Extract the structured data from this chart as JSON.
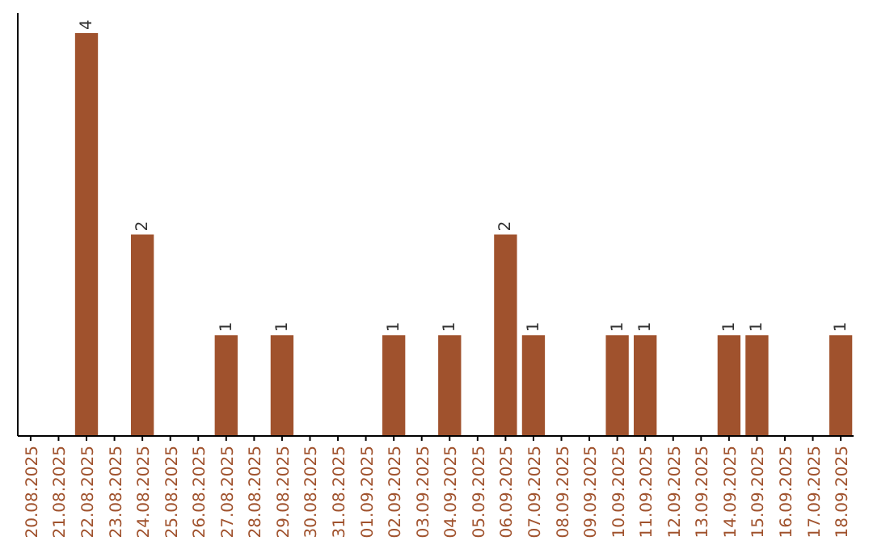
{
  "chart_data": {
    "type": "bar",
    "categories": [
      "20.08.2025",
      "21.08.2025",
      "22.08.2025",
      "23.08.2025",
      "24.08.2025",
      "25.08.2025",
      "26.08.2025",
      "27.08.2025",
      "28.08.2025",
      "29.08.2025",
      "30.08.2025",
      "31.08.2025",
      "01.09.2025",
      "02.09.2025",
      "03.09.2025",
      "04.09.2025",
      "05.09.2025",
      "06.09.2025",
      "07.09.2025",
      "08.09.2025",
      "09.09.2025",
      "10.09.2025",
      "11.09.2025",
      "12.09.2025",
      "13.09.2025",
      "14.09.2025",
      "15.09.2025",
      "16.09.2025",
      "17.09.2025",
      "18.09.2025"
    ],
    "values": [
      0,
      0,
      4,
      0,
      2,
      0,
      0,
      1,
      0,
      1,
      0,
      0,
      0,
      1,
      0,
      1,
      0,
      2,
      1,
      0,
      0,
      1,
      1,
      0,
      0,
      1,
      1,
      0,
      0,
      1
    ],
    "value_labels": [
      null,
      null,
      "4",
      null,
      "2",
      null,
      null,
      "1",
      null,
      "1",
      null,
      null,
      null,
      "1",
      null,
      "1",
      null,
      "2",
      "1",
      null,
      null,
      "1",
      "1",
      null,
      null,
      "1",
      "1",
      null,
      null,
      "1"
    ],
    "color": "#a0522d",
    "tick_labels": "x"
  }
}
